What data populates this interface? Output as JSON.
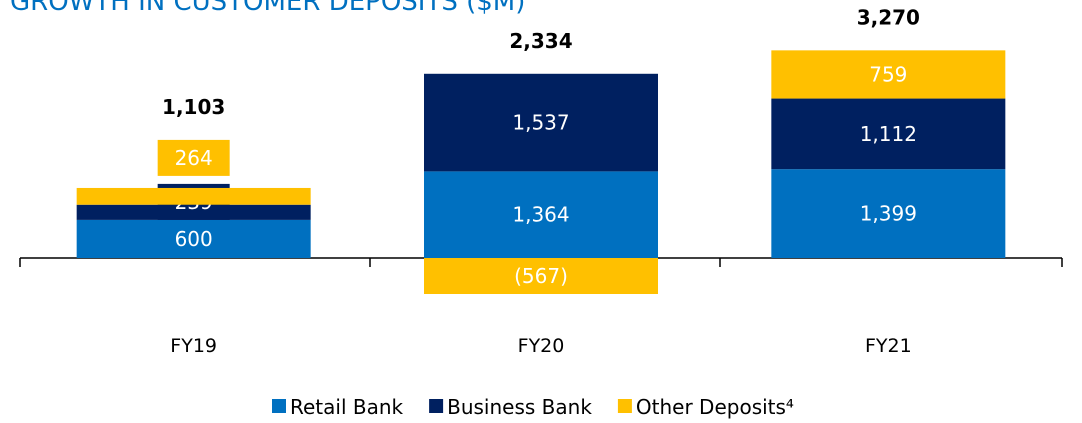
{
  "chart_data": {
    "type": "stacked_bar",
    "title": "GROWTH IN CUSTOMER DEPOSITS ($M)",
    "categories": [
      "FY19",
      "FY20",
      "FY21"
    ],
    "series": [
      {
        "name": "Retail Bank",
        "color": "#0070c0",
        "values": [
          600,
          1364,
          1399
        ],
        "value_labels": [
          "600",
          "1,364",
          "1,399"
        ]
      },
      {
        "name": "Business Bank",
        "color": "#002060",
        "values": [
          239,
          1537,
          1112
        ],
        "value_labels": [
          "239",
          "1,537",
          "1,112"
        ]
      },
      {
        "name": "Other Deposits⁴",
        "color": "#ffc000",
        "values": [
          264,
          -567,
          759
        ],
        "value_labels": [
          "264",
          "(567)",
          "759"
        ]
      }
    ],
    "totals": {
      "values": [
        1103,
        2334,
        3270
      ],
      "value_labels": [
        "1,103",
        "2,334",
        "3,270"
      ]
    }
  }
}
